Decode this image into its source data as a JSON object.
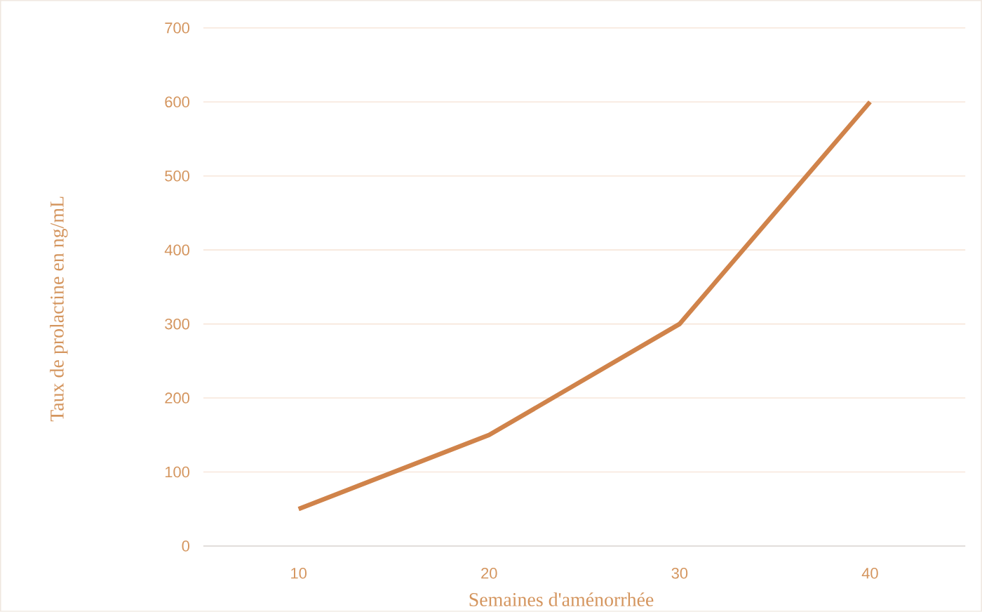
{
  "chart_data": {
    "type": "line",
    "xlabel": "Semaines d'aménorrhée",
    "ylabel": "Taux de prolactine en ng/mL",
    "categories": [
      "10",
      "20",
      "30",
      "40"
    ],
    "series": [
      {
        "color": "#d0834a",
        "values": [
          50,
          150,
          300,
          600
        ]
      }
    ],
    "ylim": [
      0,
      700
    ],
    "yticks": [
      0,
      100,
      200,
      300,
      400,
      500,
      600,
      700
    ],
    "grid": "y",
    "marker": "none",
    "line_style": "solid"
  }
}
